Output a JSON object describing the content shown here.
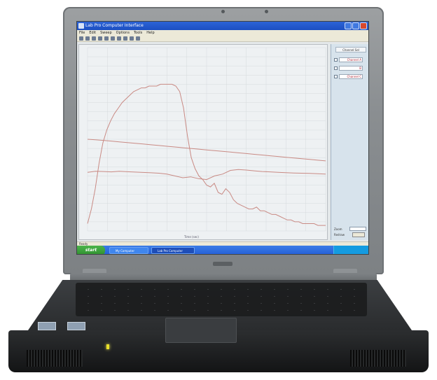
{
  "window": {
    "title": "Lab Pro Computer Interface"
  },
  "menu": [
    "File",
    "Edit",
    "Sweep",
    "Options",
    "Tools",
    "Help"
  ],
  "panel": {
    "header": "Channel Sel",
    "channels": [
      {
        "label": "Channel A",
        "checked": true
      },
      {
        "label": "B",
        "checked": true
      },
      {
        "label": "Channel C",
        "checked": true
      }
    ],
    "zoom_label": "Zoom",
    "redraw_label": "Redraw",
    "redraw_button": "Plot"
  },
  "plot": {
    "xlabel": "Time (sec)",
    "traces": [
      {
        "color": "#c98a84",
        "values": [
          96,
          88,
          77,
          63,
          52,
          45,
          40,
          36,
          33,
          30,
          28,
          26,
          24,
          23,
          22,
          22,
          21,
          21,
          21,
          20,
          20,
          20,
          20,
          21,
          24,
          33,
          48,
          60,
          66,
          70,
          72,
          75,
          76,
          74,
          79,
          80,
          77,
          79,
          83,
          85,
          86,
          87,
          88,
          88,
          87,
          89,
          89,
          90,
          91,
          91,
          92,
          93,
          94,
          94,
          95,
          95,
          96,
          96,
          96,
          96,
          97,
          97,
          97
        ]
      },
      {
        "color": "#c98a84",
        "values": [
          50,
          50.3,
          50.6,
          51,
          51.4,
          51.8,
          52.2,
          52.6,
          53,
          53.4,
          53.8,
          54.2,
          54.6,
          55,
          55.4,
          55.8,
          56.2,
          56.6,
          57,
          57.4,
          57.8,
          58.2,
          58.6,
          59,
          59.4,
          59.8,
          60.2,
          60.6,
          61,
          61.4,
          61.8
        ]
      },
      {
        "color": "#c98a84",
        "values": [
          68,
          67.5,
          67.6,
          67.8,
          67.5,
          67.7,
          67.9,
          68.1,
          68.3,
          68.5,
          69,
          70,
          71,
          70.5,
          71.5,
          72,
          70,
          69,
          67,
          66.5,
          66.8,
          67.2,
          67.6,
          67.8,
          68,
          68.2,
          68.4,
          68.5,
          68.6,
          68.8,
          69
        ]
      }
    ]
  },
  "status_text": "Ready",
  "taskbar": {
    "start": "start",
    "tasks": [
      "My Computer",
      "Lab Pro Computer"
    ]
  }
}
